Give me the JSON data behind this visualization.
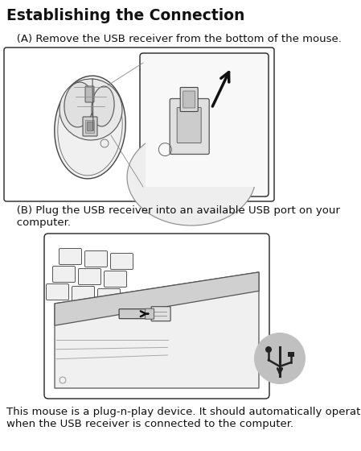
{
  "title": "Establishing the Connection",
  "title_fontsize": 13.5,
  "step_a_text": "   (A) Remove the USB receiver from the bottom of the mouse.",
  "step_b_line1": "   (B) Plug the USB receiver into an available USB port on your",
  "step_b_line2": "   computer.",
  "footer_line1": "This mouse is a plug-n-play device. It should automatically operate",
  "footer_line2": "when the USB receiver is connected to the computer.",
  "bg_color": "#ffffff",
  "text_color": "#111111",
  "border_color": "#222222",
  "step_fontsize": 9.5,
  "footer_fontsize": 9.5,
  "usb_circle_color": "#c0c0c0"
}
